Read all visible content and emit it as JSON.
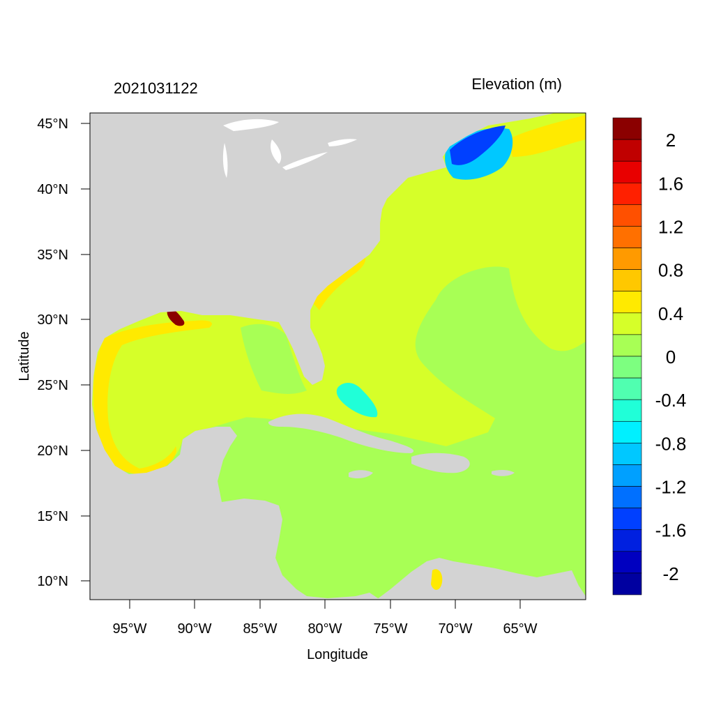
{
  "map": {
    "left_title": "2021031122",
    "right_title": "Elevation (m)",
    "x_axis_label": "Longitude",
    "y_axis_label": "Latitude",
    "lon_ticks": [
      "95°W",
      "90°W",
      "85°W",
      "80°W",
      "75°W",
      "70°W",
      "65°W"
    ],
    "lat_ticks": [
      "45°N",
      "40°N",
      "35°N",
      "30°N",
      "25°N",
      "20°N",
      "15°N",
      "10°N"
    ],
    "land_color": "#d3d3d3",
    "colors": {
      "ocean_main": "#d6ff29",
      "ocean_low": "#a8ff55",
      "ocean_neg": "#7dff80",
      "surge_pos": "#ffea00",
      "surge_high": "#8b0000",
      "surge_neg": "#0040ff"
    }
  },
  "colorbar": {
    "labels": [
      "2",
      "1.6",
      "1.2",
      "0.8",
      "0.4",
      "0",
      "-0.4",
      "-0.8",
      "-1.2",
      "-1.6",
      "-2"
    ],
    "colors": [
      "#8b0000",
      "#c00000",
      "#e80000",
      "#ff2000",
      "#ff5000",
      "#ff7000",
      "#ff9a00",
      "#ffc800",
      "#ffea00",
      "#d6ff29",
      "#a8ff55",
      "#7dff80",
      "#50ffb0",
      "#20ffd8",
      "#00f0ff",
      "#00c8ff",
      "#00a0ff",
      "#0070ff",
      "#0040ff",
      "#0020e0",
      "#0000c0",
      "#0000a0"
    ]
  }
}
